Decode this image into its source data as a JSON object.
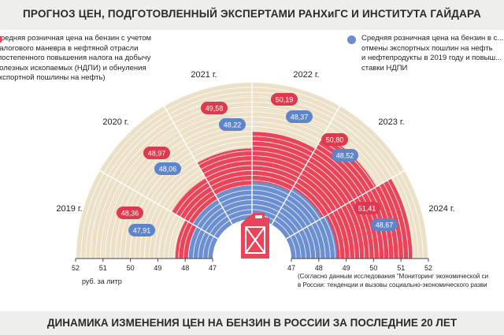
{
  "page": {
    "title": "ПРОГНОЗ ЦЕН, ПОДГОТОВЛЕННЫЙ ЭКСПЕРТАМИ РАНХиГС И ИНСТИТУТА ГАЙДАРА",
    "footer": "ДИНАМИКА ИЗМЕНЕНИЯ ЦЕН НА БЕНЗИН В РОССИИ ЗА ПОСЛЕДНИЕ 20 ЛЕТ",
    "source_note": "(Согласно данным исследования \"Мониторинг экономической си... в России: тенденции и вызовы социально-экономического разви...",
    "source_note_lines": [
      "(Согласно данным исследования \"Мониторинг экономической си",
      "в России: тенденции и вызовы социально-экономического разви"
    ],
    "units_label": "руб. за литр",
    "colors": {
      "red": "#e8445a",
      "blue": "#6b8fd0",
      "beige": "#ece0c6",
      "can": "#e8445a"
    }
  },
  "legend": {
    "red_lines": [
      "Средняя розничная цена на бензин с учетом",
      "налогового маневра в нефтяной отрасли",
      "(постепенного повышения налога на добычу",
      "полезных ископаемых (НДПИ) и обнуления",
      "экспортной пошлины на нефть)"
    ],
    "blue_lines": [
      "Средняя розничная цена на бензин в с...",
      "отмены экспортных пошлин на нефть",
      "и нефтепродукты в 2019 году и повыш...",
      "ставки НДПИ"
    ]
  },
  "chart_data": {
    "type": "radial-bar",
    "title": "ПРОГНОЗ ЦЕН, ПОДГОТОВЛЕННЫЙ ЭКСПЕРТАМИ РАНХиГС И ИНСТИТУТА ГАЙДАРА",
    "categories": [
      "2019 г.",
      "2020 г.",
      "2021 г.",
      "2022 г.",
      "2023 г.",
      "2024 г."
    ],
    "series": [
      {
        "name": "Средняя розничная цена на бензин с учетом налогового маневра в нефтяной отрасли",
        "color": "#e8445a",
        "values": [
          48.36,
          48.97,
          49.58,
          50.19,
          50.8,
          51.41
        ]
      },
      {
        "name": "Средняя розничная цена на бензин в случае отмены экспортных пошлин",
        "color": "#6b8fd0",
        "values": [
          47.91,
          48.06,
          48.22,
          48.37,
          48.52,
          48.67
        ]
      }
    ],
    "value_labels": {
      "red": [
        "48,36",
        "48,97",
        "49,58",
        "50,19",
        "50,80",
        "51,41"
      ],
      "blue": [
        "47,91",
        "48,06",
        "48,22",
        "48,37",
        "48,52",
        "48,67"
      ]
    },
    "radial_axis": {
      "min": 47,
      "max": 52,
      "ticks": [
        "47",
        "48",
        "49",
        "50",
        "51",
        "52"
      ]
    },
    "axis_label": "руб. за литр"
  }
}
